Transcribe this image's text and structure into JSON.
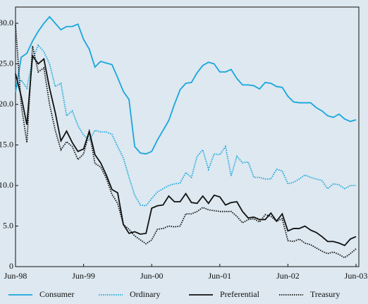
{
  "chart_data": {
    "type": "line",
    "categories": [
      "Jun-98",
      null,
      null,
      null,
      null,
      null,
      null,
      null,
      null,
      null,
      null,
      null,
      "Jun-99",
      null,
      null,
      null,
      null,
      null,
      null,
      null,
      null,
      null,
      null,
      null,
      "Jun-00",
      null,
      null,
      null,
      null,
      null,
      null,
      null,
      null,
      null,
      null,
      null,
      "Jun-01",
      null,
      null,
      null,
      null,
      null,
      null,
      null,
      null,
      null,
      null,
      null,
      "Jun-02",
      null,
      null,
      null,
      null,
      null,
      null,
      null,
      null,
      null,
      null,
      null,
      "Jun-03"
    ],
    "ylim": [
      0,
      32
    ],
    "yticks": [
      0,
      {
        "value": 5,
        "label": "5.0"
      },
      {
        "value": 10,
        "label": "10.0"
      },
      {
        "value": 15,
        "label": "15.0"
      },
      {
        "value": 20,
        "label": "20.0"
      },
      {
        "value": 25,
        "label": "25.0"
      },
      {
        "value": 30,
        "label": "30.0"
      }
    ],
    "legend": "bottom",
    "series": [
      {
        "name": "Consumer",
        "color": "#1aa6dc",
        "style": "solid",
        "values": [
          21.5,
          25.8,
          26.3,
          27.8,
          29.0,
          30.0,
          30.8,
          30.0,
          29.2,
          29.6,
          29.6,
          29.9,
          28.0,
          26.8,
          24.6,
          25.3,
          25.1,
          24.9,
          23.3,
          21.6,
          20.6,
          14.8,
          14.0,
          13.9,
          14.2,
          15.6,
          16.8,
          18.0,
          20.0,
          21.8,
          22.6,
          22.7,
          23.9,
          24.8,
          25.2,
          25.0,
          24.0,
          24.0,
          24.3,
          23.2,
          22.4,
          22.4,
          22.3,
          21.9,
          22.7,
          22.6,
          22.2,
          22.1,
          21.0,
          20.3,
          20.2,
          20.2,
          20.2,
          19.6,
          19.2,
          18.6,
          18.4,
          18.8,
          18.2,
          17.9,
          18.1
        ]
      },
      {
        "name": "Ordinary",
        "color": "#1aa6dc",
        "style": "dotted",
        "values": [
          22.0,
          23.0,
          22.0,
          25.5,
          27.3,
          26.5,
          25.0,
          22.2,
          22.6,
          18.6,
          19.2,
          17.4,
          16.2,
          15.6,
          16.8,
          16.6,
          16.6,
          16.3,
          14.8,
          13.4,
          11.0,
          8.8,
          7.6,
          7.5,
          8.4,
          9.2,
          9.6,
          10.0,
          10.2,
          10.3,
          11.6,
          11.0,
          13.6,
          14.4,
          12.0,
          13.9,
          13.8,
          14.8,
          11.2,
          13.6,
          12.8,
          12.9,
          11.0,
          11.0,
          10.8,
          10.8,
          12.0,
          11.8,
          10.2,
          10.4,
          10.8,
          11.3,
          11.0,
          10.8,
          10.6,
          9.6,
          10.2,
          10.1,
          9.6,
          10.0,
          10.0
        ]
      },
      {
        "name": "Preferential",
        "color": "#111111",
        "style": "solid",
        "values": [
          23.8,
          21.0,
          17.5,
          26.0,
          25.0,
          25.6,
          22.0,
          19.0,
          15.5,
          16.7,
          15.3,
          14.2,
          14.5,
          16.7,
          13.8,
          12.8,
          11.3,
          9.5,
          9.1,
          5.2,
          4.1,
          4.3,
          4.0,
          4.1,
          7.2,
          7.5,
          7.6,
          8.7,
          8.0,
          8.0,
          9.0,
          7.9,
          7.8,
          8.7,
          7.8,
          8.8,
          8.6,
          7.6,
          7.9,
          8.0,
          6.8,
          6.0,
          6.1,
          5.8,
          5.8,
          6.6,
          5.6,
          6.5,
          4.4,
          4.7,
          4.7,
          5.0,
          4.5,
          4.2,
          3.7,
          3.1,
          3.1,
          2.9,
          2.6,
          3.4,
          3.7
        ]
      },
      {
        "name": "Treasury",
        "color": "#111111",
        "style": "dotted",
        "values": [
          29.8,
          20.0,
          15.3,
          27.2,
          24.0,
          24.5,
          20.0,
          16.8,
          14.4,
          15.4,
          14.8,
          13.2,
          13.9,
          16.6,
          12.7,
          12.3,
          10.9,
          8.9,
          7.8,
          5.2,
          4.6,
          3.8,
          3.3,
          2.8,
          3.3,
          4.6,
          4.7,
          5.0,
          4.9,
          5.0,
          6.5,
          6.5,
          6.8,
          7.3,
          7.0,
          6.9,
          6.8,
          6.8,
          6.8,
          6.2,
          5.4,
          5.8,
          5.9,
          5.5,
          6.4,
          6.2,
          5.6,
          5.9,
          3.2,
          3.1,
          3.4,
          2.9,
          2.7,
          2.3,
          1.9,
          1.6,
          1.8,
          1.5,
          1.1,
          1.6,
          2.2
        ]
      }
    ]
  }
}
